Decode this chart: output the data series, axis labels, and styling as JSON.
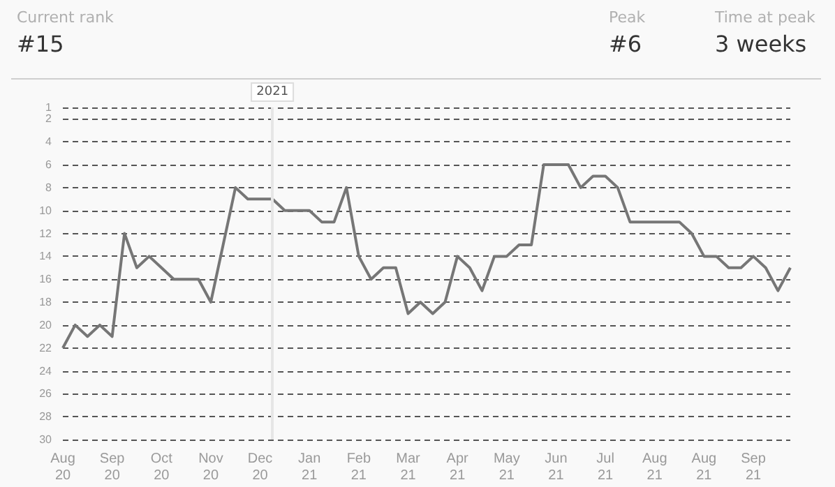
{
  "chart_data": {
    "type": "line",
    "annotations": [
      "Current rank",
      "#15",
      "Peak",
      "#6",
      "Time at peak",
      "3 weeks",
      "2021"
    ],
    "categories": [
      "Aug\n20",
      null,
      null,
      null,
      "Sep\n20",
      null,
      null,
      null,
      "Oct\n20",
      null,
      null,
      null,
      "Nov\n20",
      null,
      null,
      null,
      "Dec\n20",
      null,
      null,
      null,
      "Jan\n21",
      null,
      null,
      null,
      "Feb\n21",
      null,
      null,
      null,
      "Mar\n21",
      null,
      null,
      null,
      "Apr\n21",
      null,
      null,
      null,
      "May\n21",
      null,
      null,
      null,
      "Jun\n21",
      null,
      null,
      null,
      "Jul\n21",
      null,
      null,
      null,
      "Aug\n21",
      null,
      null,
      null,
      "Aug\n21",
      null,
      null,
      null,
      "Sep\n21",
      null,
      null,
      null
    ],
    "values": [
      22,
      20,
      21,
      20,
      21,
      12,
      15,
      14,
      15,
      16,
      16,
      16,
      18,
      13,
      8,
      9,
      9,
      9,
      10,
      10,
      10,
      11,
      11,
      8,
      14,
      16,
      15,
      15,
      19,
      18,
      19,
      18,
      14,
      15,
      17,
      14,
      14,
      13,
      13,
      6,
      6,
      6,
      8,
      7,
      7,
      8,
      11,
      11,
      11,
      11,
      11,
      12,
      14,
      14,
      15,
      15,
      14,
      15,
      17,
      15
    ],
    "color": "#767676",
    "ylim": [
      30,
      1
    ],
    "yticks": [
      1,
      2,
      4,
      6,
      8,
      10,
      12,
      14,
      16,
      18,
      20,
      22,
      24,
      26,
      28,
      30
    ],
    "grid": "y",
    "marker": "none",
    "line_style": "solid"
  }
}
